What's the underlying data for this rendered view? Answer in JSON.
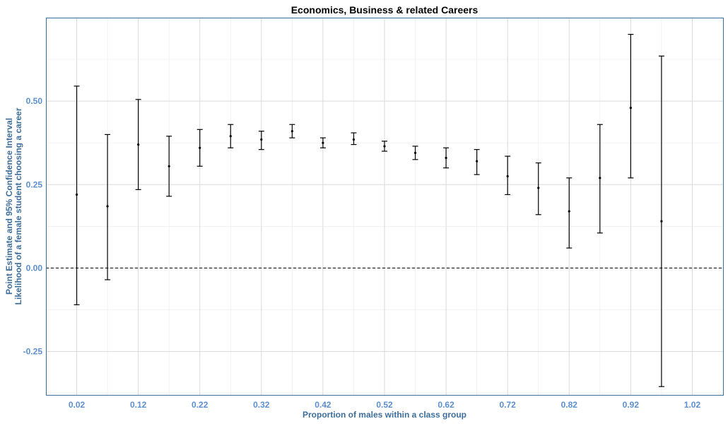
{
  "chart_data": {
    "type": "errorbar",
    "title": "Economics, Business & related Careers",
    "xlabel": "Proportion of males within a class group",
    "ylabel_line1": "Point Estimate and 95% Confidence Interval",
    "ylabel_line2": "Likelihood of a female student choosing a career",
    "xlim": [
      -0.03,
      1.07
    ],
    "ylim": [
      -0.38,
      0.75
    ],
    "x_ticks": [
      0.02,
      0.12,
      0.22,
      0.32,
      0.42,
      0.52,
      0.62,
      0.72,
      0.82,
      0.92,
      1.02
    ],
    "x_tick_labels": [
      "0.02",
      "0.12",
      "0.22",
      "0.32",
      "0.42",
      "0.52",
      "0.62",
      "0.72",
      "0.82",
      "0.92",
      "1.02"
    ],
    "y_ticks": [
      -0.25,
      0.0,
      0.25,
      0.5
    ],
    "y_tick_labels": [
      "-0.25",
      "0.00",
      "0.25",
      "0.50"
    ],
    "reference_line_y": 0.0,
    "grid": true,
    "points": [
      {
        "x": 0.02,
        "estimate": 0.22,
        "lower": -0.11,
        "upper": 0.545
      },
      {
        "x": 0.07,
        "estimate": 0.185,
        "lower": -0.035,
        "upper": 0.4
      },
      {
        "x": 0.12,
        "estimate": 0.37,
        "lower": 0.235,
        "upper": 0.505
      },
      {
        "x": 0.17,
        "estimate": 0.305,
        "lower": 0.215,
        "upper": 0.395
      },
      {
        "x": 0.22,
        "estimate": 0.36,
        "lower": 0.305,
        "upper": 0.415
      },
      {
        "x": 0.27,
        "estimate": 0.395,
        "lower": 0.36,
        "upper": 0.43
      },
      {
        "x": 0.32,
        "estimate": 0.385,
        "lower": 0.355,
        "upper": 0.41
      },
      {
        "x": 0.37,
        "estimate": 0.41,
        "lower": 0.39,
        "upper": 0.43
      },
      {
        "x": 0.42,
        "estimate": 0.375,
        "lower": 0.36,
        "upper": 0.39
      },
      {
        "x": 0.47,
        "estimate": 0.385,
        "lower": 0.37,
        "upper": 0.405
      },
      {
        "x": 0.52,
        "estimate": 0.365,
        "lower": 0.35,
        "upper": 0.38
      },
      {
        "x": 0.57,
        "estimate": 0.345,
        "lower": 0.325,
        "upper": 0.365
      },
      {
        "x": 0.62,
        "estimate": 0.33,
        "lower": 0.3,
        "upper": 0.36
      },
      {
        "x": 0.67,
        "estimate": 0.32,
        "lower": 0.28,
        "upper": 0.355
      },
      {
        "x": 0.72,
        "estimate": 0.275,
        "lower": 0.22,
        "upper": 0.335
      },
      {
        "x": 0.77,
        "estimate": 0.24,
        "lower": 0.16,
        "upper": 0.315
      },
      {
        "x": 0.82,
        "estimate": 0.17,
        "lower": 0.06,
        "upper": 0.27
      },
      {
        "x": 0.87,
        "estimate": 0.27,
        "lower": 0.105,
        "upper": 0.43
      },
      {
        "x": 0.92,
        "estimate": 0.48,
        "lower": 0.27,
        "upper": 0.7
      },
      {
        "x": 0.97,
        "estimate": 0.14,
        "lower": -0.355,
        "upper": 0.635
      }
    ]
  }
}
